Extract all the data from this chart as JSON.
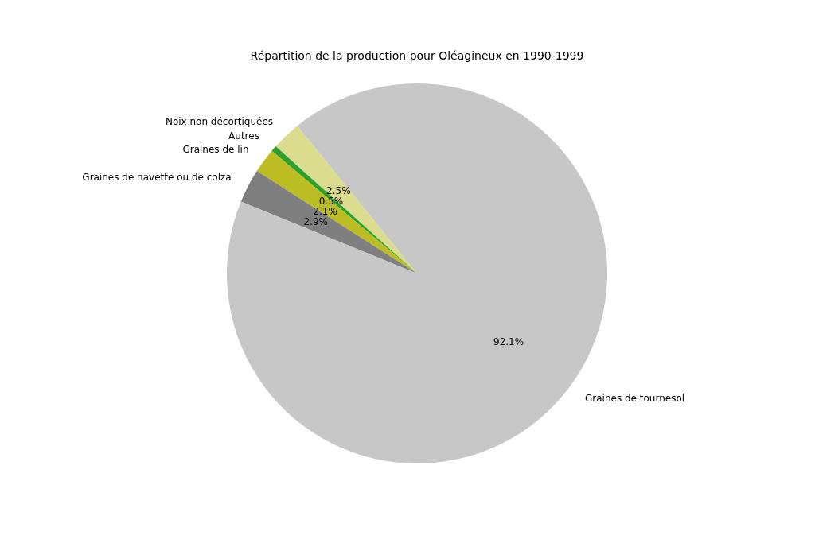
{
  "chart_data": {
    "type": "pie",
    "title": "Répartition de la production pour Oléagineux en 1990-1999",
    "categories": [
      "Noix non décortiquées",
      "Autres",
      "Graines de lin",
      "Graines de navette ou de colza",
      "Graines de tournesol"
    ],
    "values": [
      2.5,
      0.5,
      2.1,
      2.9,
      92.1
    ],
    "colors": [
      "#dbdc8d",
      "#2ca02c",
      "#bcbd22",
      "#7f7f7f",
      "#c7c7c7"
    ],
    "value_labels": [
      "2.5%",
      "0.5%",
      "2.1%",
      "2.9%",
      "92.1%"
    ],
    "legend": false
  }
}
